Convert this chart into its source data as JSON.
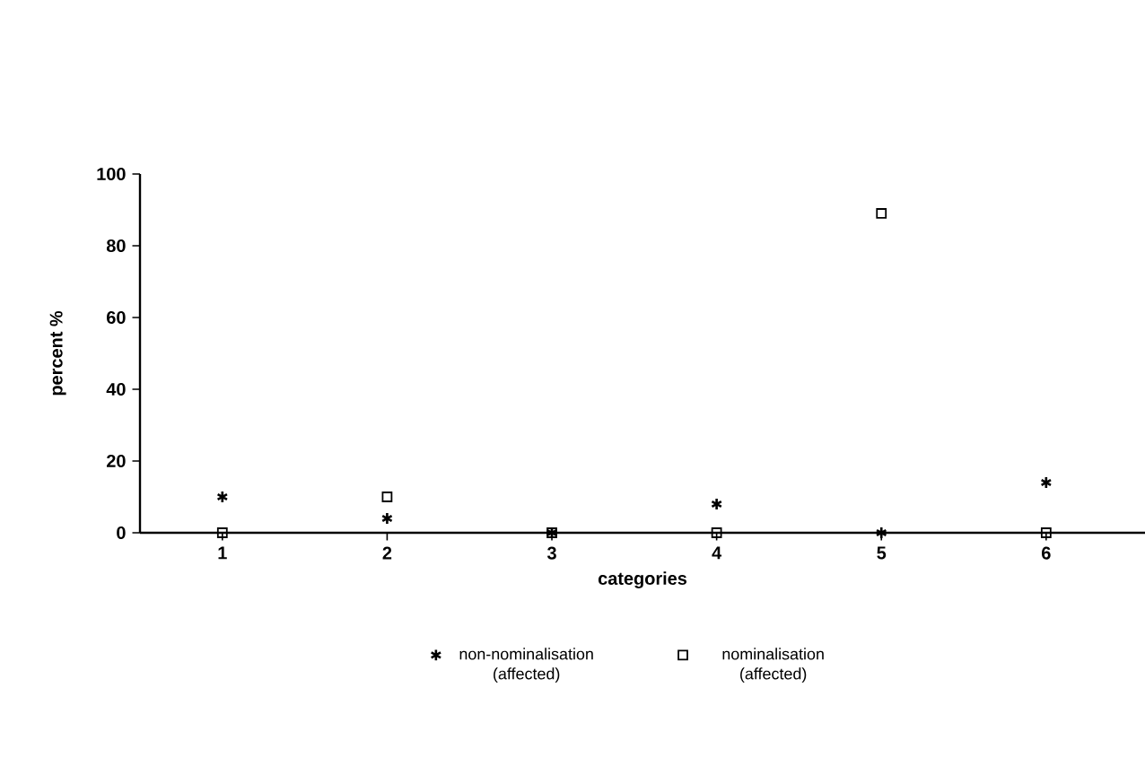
{
  "chart_data": {
    "type": "scatter",
    "xlabel": "categories",
    "ylabel": "percent %",
    "x": [
      1,
      2,
      3,
      4,
      5,
      6
    ],
    "xlim": [
      0.5,
      6.6
    ],
    "xticks": [
      1,
      2,
      3,
      4,
      5,
      6
    ],
    "ylim": [
      0,
      100
    ],
    "yticks": [
      0,
      20,
      40,
      60,
      80,
      100
    ],
    "legend": "bottom",
    "grid": false,
    "series": [
      {
        "name": "non-nominalisation (affected)",
        "color": "#000000",
        "marker": "cross",
        "values": [
          10,
          4,
          0,
          8,
          0,
          14
        ]
      },
      {
        "name": "nominalisation (affected)",
        "color": "#000000",
        "marker": "square",
        "values": [
          0,
          10,
          0,
          0,
          89,
          0
        ]
      }
    ]
  }
}
